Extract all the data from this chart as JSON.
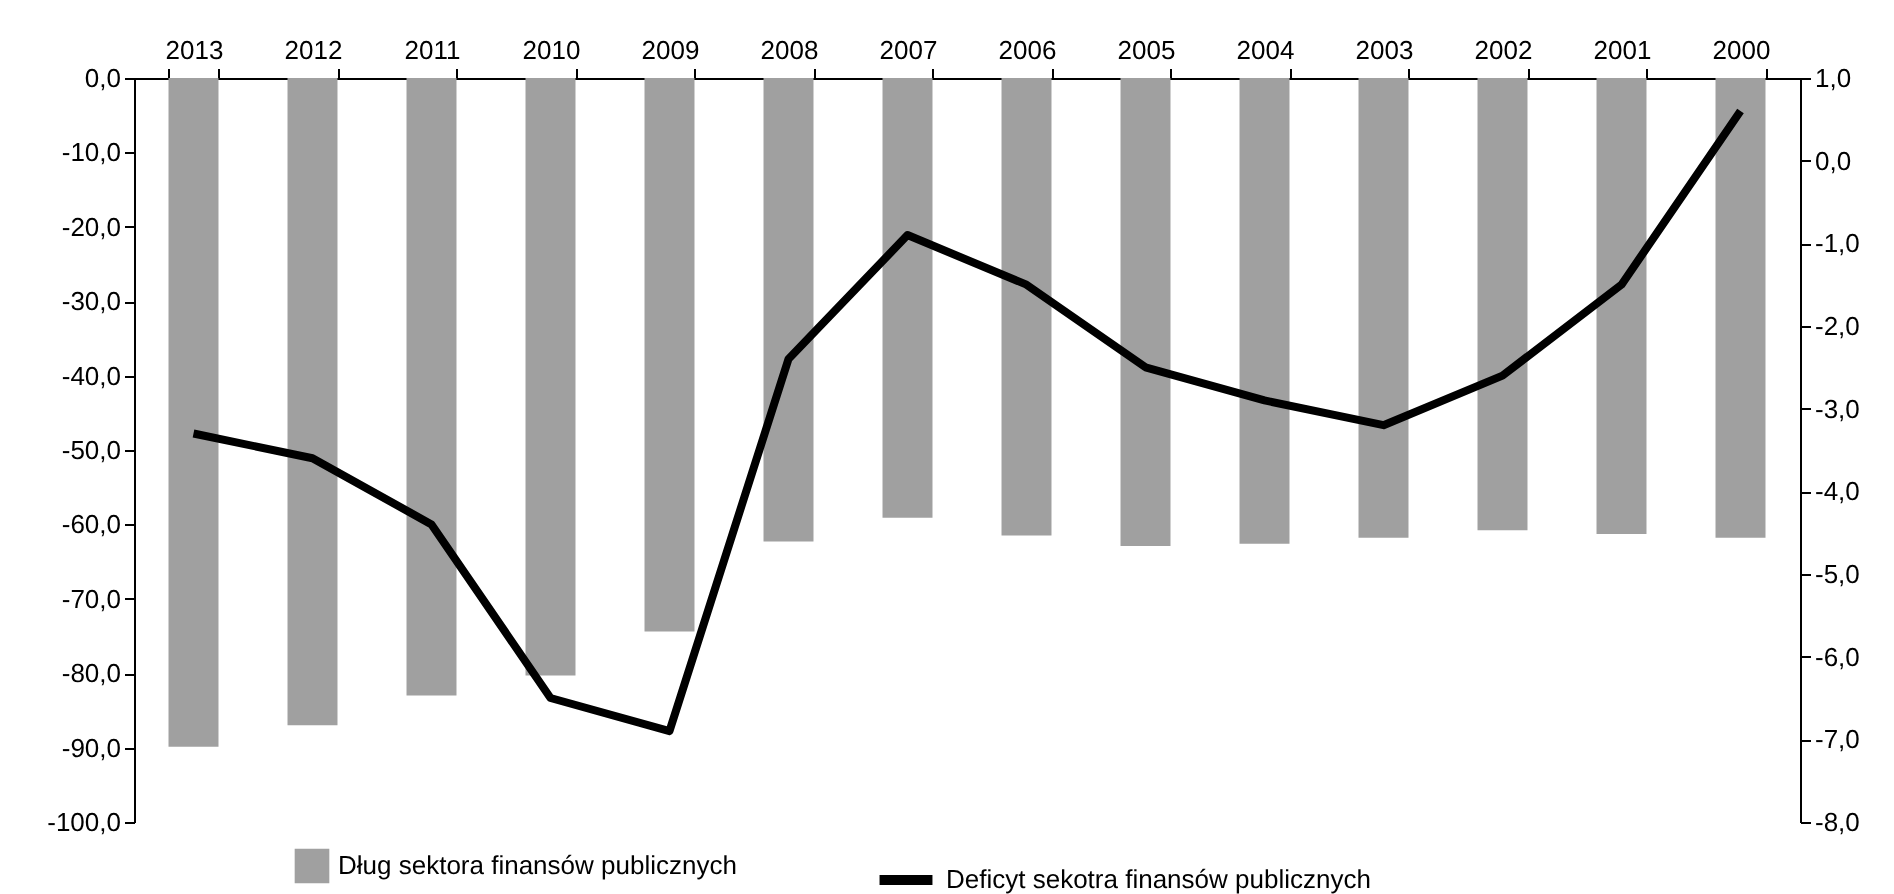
{
  "chart_data": {
    "type": "bar",
    "categories": [
      "2013",
      "2012",
      "2011",
      "2010",
      "2009",
      "2008",
      "2007",
      "2006",
      "2005",
      "2004",
      "2003",
      "2002",
      "2001",
      "2000"
    ],
    "series": [
      {
        "name": "Dług sektora finansów publicznych",
        "color": "#a0a0a0",
        "values": [
          -89.9,
          -87.0,
          -83.0,
          -80.3,
          -74.4,
          -62.3,
          -59.1,
          -61.5,
          -62.9,
          -62.6,
          -61.8,
          -60.8,
          -61.3,
          -61.8
        ]
      },
      {
        "name": "Deficyt sekotra finansów publicznych",
        "type": "line",
        "axis": "y2",
        "color": "#000000",
        "values": [
          -3.3,
          -3.6,
          -4.4,
          -6.5,
          -6.9,
          -2.4,
          -0.9,
          -1.5,
          -2.5,
          -2.9,
          -3.2,
          -2.6,
          -1.5,
          0.6
        ]
      }
    ],
    "ylim": [
      -100,
      0
    ],
    "yticks": [
      {
        "value": 0,
        "label": "0,0"
      },
      {
        "value": -10,
        "label": "-10,0"
      },
      {
        "value": -20,
        "label": "-20,0"
      },
      {
        "value": -30,
        "label": "-30,0"
      },
      {
        "value": -40,
        "label": "-40,0"
      },
      {
        "value": -50,
        "label": "-50,0"
      },
      {
        "value": -60,
        "label": "-60,0"
      },
      {
        "value": -70,
        "label": "-70,0"
      },
      {
        "value": -80,
        "label": "-80,0"
      },
      {
        "value": -90,
        "label": "-90,0"
      },
      {
        "value": -100,
        "label": "-100,0"
      }
    ],
    "y2lim": [
      -8,
      1
    ],
    "y2ticks": [
      {
        "value": 1,
        "label": "1,0"
      },
      {
        "value": 0,
        "label": "0,0"
      },
      {
        "value": -1,
        "label": "-1,0"
      },
      {
        "value": -2,
        "label": "-2,0"
      },
      {
        "value": -3,
        "label": "-3,0"
      },
      {
        "value": -4,
        "label": "-4,0"
      },
      {
        "value": -5,
        "label": "-5,0"
      },
      {
        "value": -6,
        "label": "-6,0"
      },
      {
        "value": -7,
        "label": "-7,0"
      },
      {
        "value": -8,
        "label": "-8,0"
      }
    ],
    "legend": "bottom",
    "grid": false,
    "line_style": "solid",
    "marker": "none"
  }
}
